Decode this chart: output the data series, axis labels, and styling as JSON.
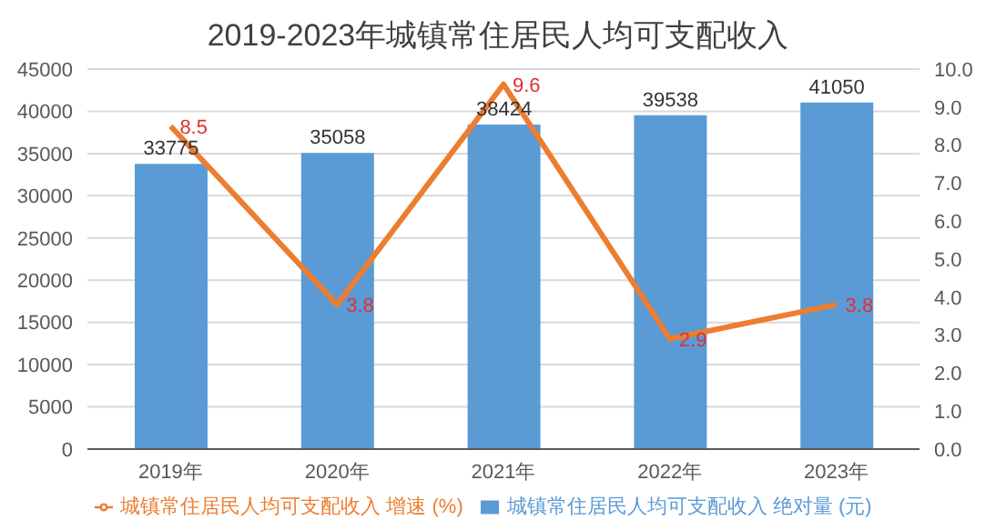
{
  "chart_data": {
    "type": "bar",
    "title": "2019-2023年城镇常住居民人均可支配收入",
    "categories": [
      "2019年",
      "2020年",
      "2021年",
      "2022年",
      "2023年"
    ],
    "series": [
      {
        "name": "城镇常住居民人均可支配收入 绝对量 (元)",
        "color": "#5b9bd5",
        "values": [
          33775,
          35058,
          38424,
          39538,
          41050
        ]
      },
      {
        "name": "城镇常住居民人均可支配收入 增速 (%)",
        "type": "line",
        "axis": "y2",
        "color": "#ed7d31",
        "values": [
          8.5,
          3.8,
          9.6,
          2.9,
          3.8
        ]
      }
    ],
    "ylim": [
      0,
      45000
    ],
    "yticks": [
      0,
      5000,
      10000,
      15000,
      20000,
      25000,
      30000,
      35000,
      40000,
      45000
    ],
    "y2lim": [
      0,
      10
    ],
    "y2ticks": [
      {
        "value": 0,
        "label": "0.0"
      },
      {
        "value": 1,
        "label": "1.0"
      },
      {
        "value": 2,
        "label": "2.0"
      },
      {
        "value": 3,
        "label": "3.0"
      },
      {
        "value": 4,
        "label": "4.0"
      },
      {
        "value": 5,
        "label": "5.0"
      },
      {
        "value": 6,
        "label": "6.0"
      },
      {
        "value": 7,
        "label": "7.0"
      },
      {
        "value": 8,
        "label": "8.0"
      },
      {
        "value": 9,
        "label": "9.0"
      },
      {
        "value": 10,
        "label": "10.0"
      }
    ],
    "grid": "y",
    "legend": "bottom",
    "data_labels": true,
    "marker": "none"
  }
}
